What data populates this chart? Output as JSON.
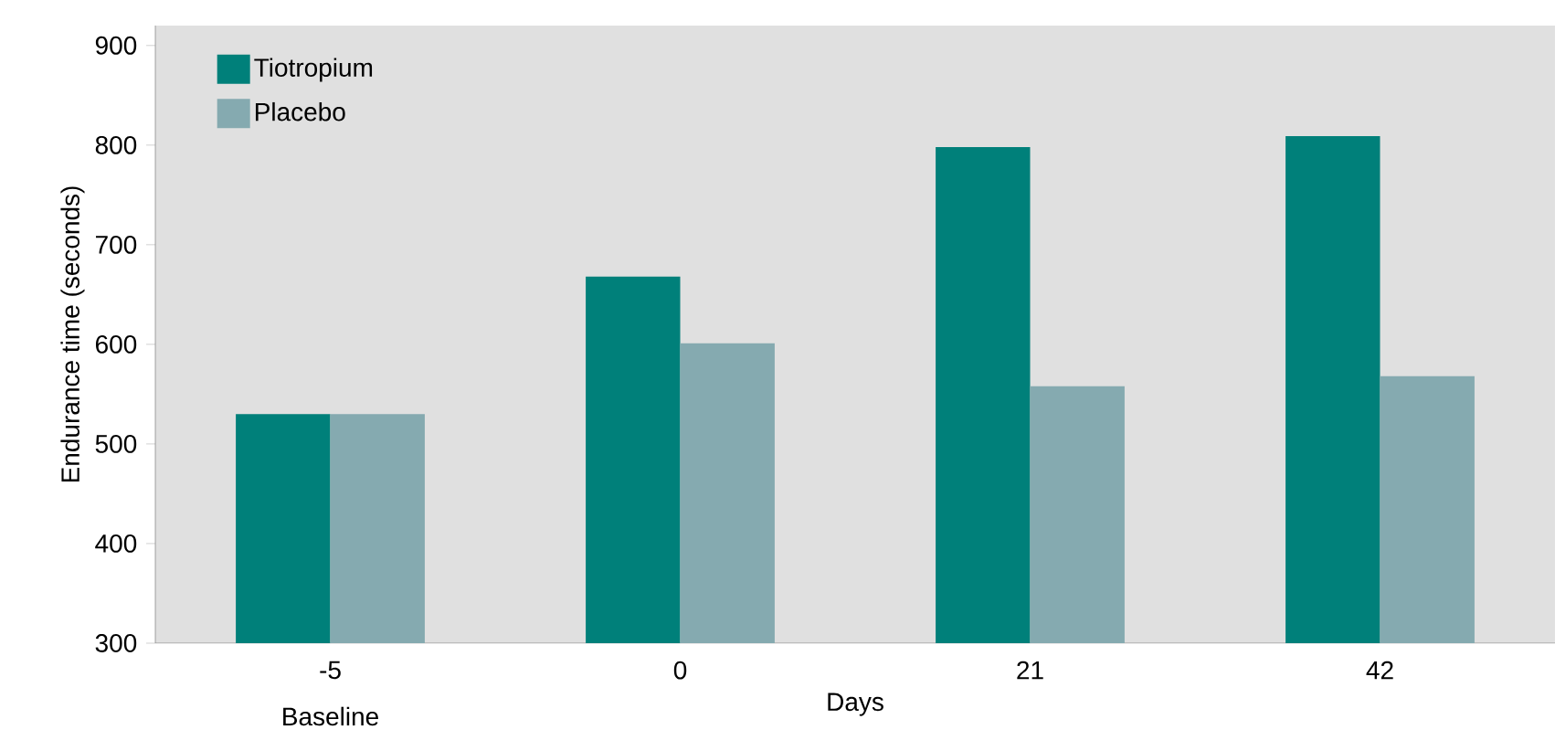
{
  "chart_data": {
    "type": "bar",
    "xlabel": "Days",
    "ylabel": "Endurance time (seconds)",
    "categories": [
      "-5",
      "0",
      "21",
      "42"
    ],
    "series": [
      {
        "name": "Tiotropium",
        "color": "#00807a",
        "values": [
          530,
          668,
          798,
          809
        ]
      },
      {
        "name": "Placebo",
        "color": "#85aab0",
        "values": [
          530,
          601,
          558,
          568
        ]
      }
    ],
    "ylim": [
      300,
      920
    ],
    "yticks": [
      300,
      400,
      500,
      600,
      700,
      800,
      900
    ],
    "legend": "top left",
    "annotations": [
      "Baseline"
    ]
  }
}
